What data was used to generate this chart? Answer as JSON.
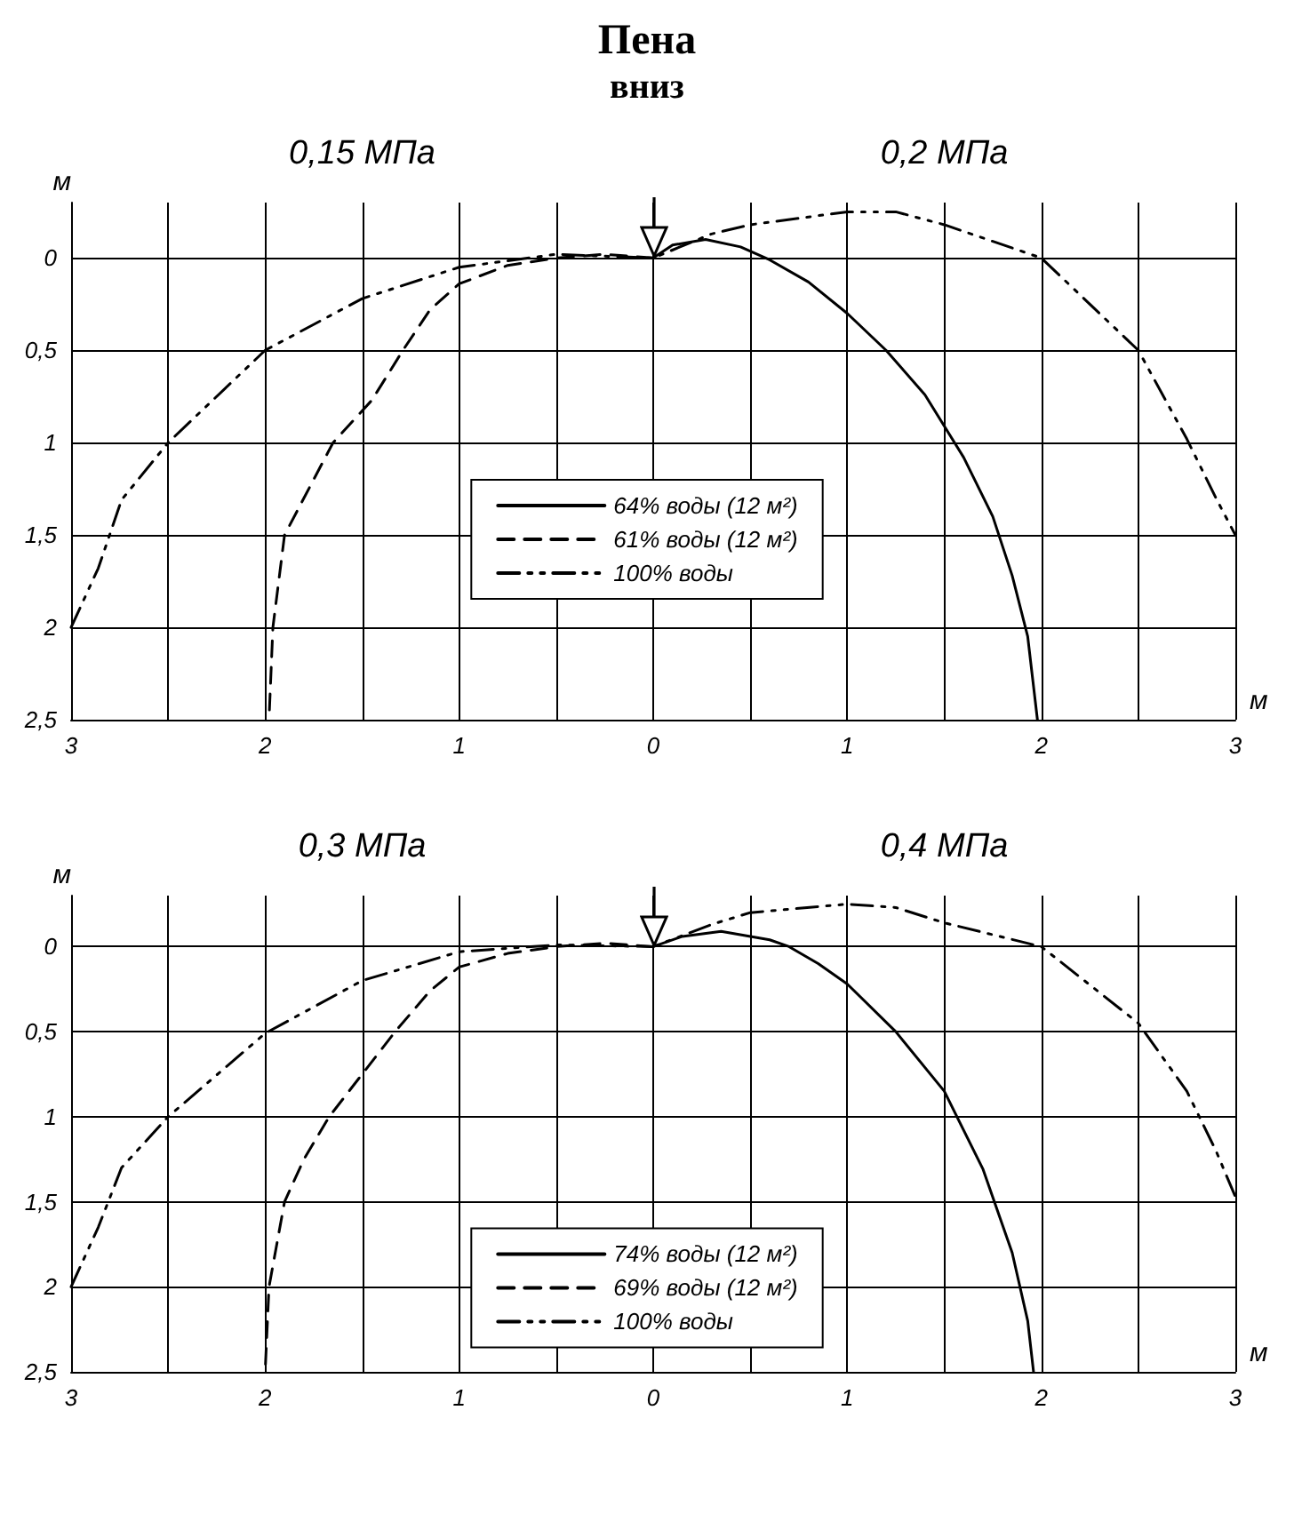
{
  "chart_data": [
    {
      "type": "line",
      "title": "Пена",
      "subtitle": "вниз",
      "annotations": [
        "0,15 МПа",
        "0,2 МПа"
      ],
      "xlabel": "м",
      "ylabel": "м",
      "xlim": [
        -3,
        3
      ],
      "xticks": [
        {
          "value": -3,
          "label": "3"
        },
        {
          "value": -2.5,
          "label": null
        },
        {
          "value": -2,
          "label": "2"
        },
        {
          "value": -1.5,
          "label": null
        },
        {
          "value": -1,
          "label": "1"
        },
        {
          "value": -0.5,
          "label": null
        },
        {
          "value": 0,
          "label": "0"
        },
        {
          "value": 0.5,
          "label": null
        },
        {
          "value": 1,
          "label": "1"
        },
        {
          "value": 1.5,
          "label": null
        },
        {
          "value": 2,
          "label": "2"
        },
        {
          "value": 2.5,
          "label": null
        },
        {
          "value": 3,
          "label": "3"
        }
      ],
      "ylim": [
        2.5,
        -0.3
      ],
      "yticks": [
        0,
        {
          "value": 0.5,
          "label": "0,5"
        },
        1,
        {
          "value": 1.5,
          "label": "1,5"
        },
        2,
        {
          "value": 2.5,
          "label": "2,5"
        }
      ],
      "grid": true,
      "legend": "center",
      "marker": "none",
      "series": [
        {
          "name": "64% воды (12 м²)",
          "color": "#000000",
          "line_style": "solid",
          "x": [
            0,
            0.1,
            0.27,
            0.45,
            0.6,
            0.8,
            1,
            1.2,
            1.4,
            1.6,
            1.75,
            1.85,
            1.93,
            1.98
          ],
          "values": [
            0,
            -0.07,
            -0.1,
            -0.06,
            0.01,
            0.13,
            0.3,
            0.5,
            0.74,
            1.08,
            1.4,
            1.72,
            2.05,
            2.5
          ]
        },
        {
          "name": "61% воды (12 м²)",
          "color": "#000000",
          "line_style": "dashed",
          "x": [
            0,
            -0.25,
            -0.5,
            -0.75,
            -1,
            -1.15,
            -1.29,
            -1.45,
            -1.65,
            -1.8,
            -1.9,
            -1.96,
            -1.98
          ],
          "values": [
            0,
            -0.02,
            0,
            0.04,
            0.14,
            0.28,
            0.5,
            0.77,
            1,
            1.3,
            1.5,
            2,
            2.5
          ]
        },
        {
          "name": "100% воды",
          "color": "#000000",
          "line_style": "dashdot",
          "x": [
            -3,
            -2.86,
            -2.74,
            -2.5,
            -2,
            -1.5,
            -1,
            -0.5,
            0,
            0.3,
            0.5,
            1,
            1.25,
            1.5,
            2,
            2.5,
            2.75,
            2.9,
            3
          ],
          "values": [
            2,
            1.68,
            1.31,
            1,
            0.5,
            0.22,
            0.05,
            -0.02,
            0,
            -0.13,
            -0.18,
            -0.25,
            -0.25,
            -0.18,
            0,
            0.5,
            0.98,
            1.3,
            1.5
          ]
        }
      ]
    },
    {
      "type": "line",
      "annotations": [
        "0,3 МПа",
        "0,4 МПа"
      ],
      "xlabel": "м",
      "ylabel": "м",
      "xlim": [
        -3,
        3
      ],
      "xticks": [
        {
          "value": -3,
          "label": "3"
        },
        {
          "value": -2.5,
          "label": null
        },
        {
          "value": -2,
          "label": "2"
        },
        {
          "value": -1.5,
          "label": null
        },
        {
          "value": -1,
          "label": "1"
        },
        {
          "value": -0.5,
          "label": null
        },
        {
          "value": 0,
          "label": "0"
        },
        {
          "value": 0.5,
          "label": null
        },
        {
          "value": 1,
          "label": "1"
        },
        {
          "value": 1.5,
          "label": null
        },
        {
          "value": 2,
          "label": "2"
        },
        {
          "value": 2.5,
          "label": null
        },
        {
          "value": 3,
          "label": "3"
        }
      ],
      "ylim": [
        2.5,
        -0.3
      ],
      "yticks": [
        0,
        {
          "value": 0.5,
          "label": "0,5"
        },
        1,
        {
          "value": 1.5,
          "label": "1,5"
        },
        2,
        {
          "value": 2.5,
          "label": "2,5"
        }
      ],
      "grid": true,
      "legend": "center",
      "marker": "none",
      "series": [
        {
          "name": "74% воды (12 м²)",
          "color": "#000000",
          "line_style": "solid",
          "x": [
            0,
            0.15,
            0.35,
            0.6,
            0.7,
            0.85,
            1,
            1.25,
            1.5,
            1.7,
            1.85,
            1.93,
            1.96
          ],
          "values": [
            0,
            -0.06,
            -0.09,
            -0.04,
            0,
            0.1,
            0.22,
            0.5,
            0.85,
            1.31,
            1.8,
            2.2,
            2.5
          ]
        },
        {
          "name": "69% воды (12 м²)",
          "color": "#000000",
          "line_style": "dashed",
          "x": [
            0,
            -0.25,
            -0.5,
            -0.75,
            -1,
            -1.15,
            -1.33,
            -1.5,
            -1.67,
            -1.8,
            -1.9,
            -1.98,
            -2
          ],
          "values": [
            0,
            -0.02,
            0,
            0.04,
            0.12,
            0.26,
            0.5,
            0.75,
            1,
            1.25,
            1.5,
            2,
            2.5
          ]
        },
        {
          "name": "100% воды",
          "color": "#000000",
          "line_style": "dashdot",
          "x": [
            -3,
            -2.86,
            -2.74,
            -2.5,
            -2,
            -1.5,
            -1,
            -0.5,
            0,
            0.3,
            0.5,
            1,
            1.25,
            1.5,
            2,
            2.5,
            2.75,
            2.9,
            3
          ],
          "values": [
            2,
            1.65,
            1.3,
            1,
            0.51,
            0.2,
            0.03,
            -0.01,
            0,
            -0.13,
            -0.2,
            -0.25,
            -0.23,
            -0.14,
            0,
            0.45,
            0.85,
            1.2,
            1.47
          ]
        }
      ]
    }
  ]
}
